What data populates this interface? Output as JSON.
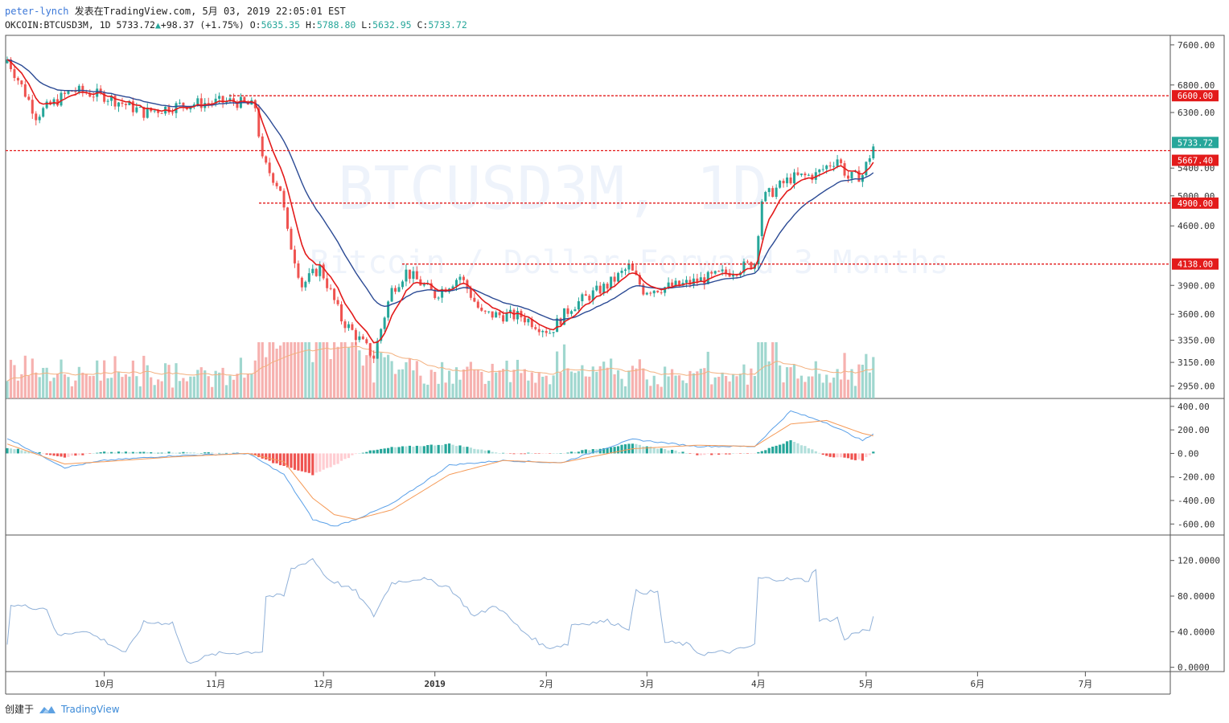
{
  "header": {
    "user": "peter-lynch",
    "published": "发表在TradingView.com, 5月 03, 2019 22:05:01 EST",
    "symbol": "OKCOIN:BTCUSD3M, 1D",
    "last": "5733.72",
    "change": "+98.37 (+1.75%)",
    "o_label": "O:",
    "o": "5635.35",
    "h_label": "H:",
    "h": "5788.80",
    "l_label": "L:",
    "l": "5632.95",
    "c_label": "C:",
    "c": "5733.72"
  },
  "footer": {
    "created": "创建于",
    "brand": "TradingView"
  },
  "watermark": {
    "symbol": "BTCUSD3M, 1D",
    "description": "Bitcoin / Dollar Forward 3 Months"
  },
  "colors": {
    "up": "#26a69a",
    "down": "#ef5350",
    "ema_fast": "#e31b1b",
    "ema_slow": "#2b4a94",
    "level": "#e31b1b",
    "macd": "#5aa0e8",
    "signal": "#f59a57",
    "osc": "#8fb0d8"
  },
  "chart_data": {
    "type": "candlestick",
    "x_axis_labels": [
      "10月",
      "11月",
      "12月",
      "2019",
      "2月",
      "3月",
      "4月",
      "5月",
      "6月",
      "7月"
    ],
    "price_axis": {
      "ticks": [
        "7600.00",
        "6800.00",
        "6300.00",
        "5400.00",
        "5000.00",
        "4600.00",
        "3900.00",
        "3600.00",
        "3350.00",
        "3150.00",
        "2950.00"
      ],
      "scale": "log",
      "range": [
        2850,
        7700
      ]
    },
    "price_tags": [
      {
        "value": "6600.00",
        "kind": "level"
      },
      {
        "value": "5733.72",
        "kind": "last"
      },
      {
        "value": "5667.40",
        "kind": "level"
      },
      {
        "value": "4900.00",
        "kind": "level"
      },
      {
        "value": "4138.00",
        "kind": "level"
      }
    ],
    "horizontal_levels": [
      6600,
      5667.4,
      4900,
      4138
    ],
    "price_path_anchors": [
      {
        "date": "2018-09-04",
        "close": 7300
      },
      {
        "date": "2018-09-12",
        "close": 6250
      },
      {
        "date": "2018-09-22",
        "close": 6700
      },
      {
        "date": "2018-10-01",
        "close": 6600
      },
      {
        "date": "2018-10-12",
        "close": 6300
      },
      {
        "date": "2018-10-24",
        "close": 6450
      },
      {
        "date": "2018-11-06",
        "close": 6500
      },
      {
        "date": "2018-11-12",
        "close": 6400
      },
      {
        "date": "2018-11-14",
        "close": 5500
      },
      {
        "date": "2018-11-19",
        "close": 5100
      },
      {
        "date": "2018-11-21",
        "close": 4500
      },
      {
        "date": "2018-11-25",
        "close": 3900
      },
      {
        "date": "2018-11-30",
        "close": 4100
      },
      {
        "date": "2018-12-06",
        "close": 3550
      },
      {
        "date": "2018-12-15",
        "close": 3200
      },
      {
        "date": "2018-12-20",
        "close": 3850
      },
      {
        "date": "2018-12-24",
        "close": 4050
      },
      {
        "date": "2019-01-01",
        "close": 3800
      },
      {
        "date": "2019-01-08",
        "close": 4000
      },
      {
        "date": "2019-01-14",
        "close": 3600
      },
      {
        "date": "2019-01-25",
        "close": 3580
      },
      {
        "date": "2019-02-02",
        "close": 3430
      },
      {
        "date": "2019-02-08",
        "close": 3680
      },
      {
        "date": "2019-02-18",
        "close": 3900
      },
      {
        "date": "2019-02-24",
        "close": 4100
      },
      {
        "date": "2019-02-28",
        "close": 3850
      },
      {
        "date": "2019-03-10",
        "close": 3900
      },
      {
        "date": "2019-03-20",
        "close": 4000
      },
      {
        "date": "2019-03-31",
        "close": 4150
      },
      {
        "date": "2019-04-02",
        "close": 4950
      },
      {
        "date": "2019-04-10",
        "close": 5250
      },
      {
        "date": "2019-04-17",
        "close": 5300
      },
      {
        "date": "2019-04-23",
        "close": 5550
      },
      {
        "date": "2019-04-26",
        "close": 5250
      },
      {
        "date": "2019-04-30",
        "close": 5300
      },
      {
        "date": "2019-05-03",
        "close": 5733.72
      }
    ],
    "macd_axis": {
      "ticks": [
        "400.00",
        "200.00",
        "0.00",
        "-200.00",
        "-400.00",
        "-600.00"
      ],
      "range": [
        -680,
        440
      ]
    },
    "macd_anchors": [
      {
        "date": "2018-09-04",
        "macd": 130,
        "signal": 80
      },
      {
        "date": "2018-09-20",
        "macd": -120,
        "signal": -90
      },
      {
        "date": "2018-10-01",
        "macd": -60,
        "signal": -70
      },
      {
        "date": "2018-10-20",
        "macd": -20,
        "signal": -30
      },
      {
        "date": "2018-11-10",
        "macd": 0,
        "signal": 0
      },
      {
        "date": "2018-11-20",
        "macd": -180,
        "signal": -70
      },
      {
        "date": "2018-11-28",
        "macd": -560,
        "signal": -380
      },
      {
        "date": "2018-12-04",
        "macd": -620,
        "signal": -520
      },
      {
        "date": "2018-12-10",
        "macd": -560,
        "signal": -560
      },
      {
        "date": "2018-12-20",
        "macd": -430,
        "signal": -480
      },
      {
        "date": "2019-01-05",
        "macd": -100,
        "signal": -180
      },
      {
        "date": "2019-01-20",
        "macd": -60,
        "signal": -60
      },
      {
        "date": "2019-02-05",
        "macd": -80,
        "signal": -80
      },
      {
        "date": "2019-02-25",
        "macd": 120,
        "signal": 40
      },
      {
        "date": "2019-03-15",
        "macd": 60,
        "signal": 70
      },
      {
        "date": "2019-03-31",
        "macd": 60,
        "signal": 60
      },
      {
        "date": "2019-04-10",
        "macd": 360,
        "signal": 250
      },
      {
        "date": "2019-04-20",
        "macd": 260,
        "signal": 280
      },
      {
        "date": "2019-04-30",
        "macd": 110,
        "signal": 170
      },
      {
        "date": "2019-05-03",
        "macd": 160,
        "signal": 150
      }
    ],
    "osc_axis": {
      "ticks": [
        "120.0000",
        "80.0000",
        "40.0000",
        "0.0000"
      ],
      "range": [
        -3,
        145
      ]
    },
    "osc_anchors": [
      {
        "date": "2018-09-04",
        "value": 28
      },
      {
        "date": "2018-09-05",
        "value": 70
      },
      {
        "date": "2018-09-15",
        "value": 66
      },
      {
        "date": "2018-09-18",
        "value": 35
      },
      {
        "date": "2018-09-25",
        "value": 42
      },
      {
        "date": "2018-10-01",
        "value": 30
      },
      {
        "date": "2018-10-07",
        "value": 16
      },
      {
        "date": "2018-10-12",
        "value": 50
      },
      {
        "date": "2018-10-20",
        "value": 50
      },
      {
        "date": "2018-10-24",
        "value": 5
      },
      {
        "date": "2018-11-01",
        "value": 15
      },
      {
        "date": "2018-11-14",
        "value": 18
      },
      {
        "date": "2018-11-15",
        "value": 80
      },
      {
        "date": "2018-11-20",
        "value": 80
      },
      {
        "date": "2018-11-22",
        "value": 110
      },
      {
        "date": "2018-11-28",
        "value": 122
      },
      {
        "date": "2018-12-02",
        "value": 100
      },
      {
        "date": "2018-12-10",
        "value": 85
      },
      {
        "date": "2018-12-15",
        "value": 58
      },
      {
        "date": "2018-12-20",
        "value": 95
      },
      {
        "date": "2018-12-28",
        "value": 100
      },
      {
        "date": "2019-01-05",
        "value": 90
      },
      {
        "date": "2019-01-12",
        "value": 57
      },
      {
        "date": "2019-01-18",
        "value": 70
      },
      {
        "date": "2019-01-25",
        "value": 42
      },
      {
        "date": "2019-02-01",
        "value": 22
      },
      {
        "date": "2019-02-07",
        "value": 26
      },
      {
        "date": "2019-02-08",
        "value": 48
      },
      {
        "date": "2019-02-18",
        "value": 52
      },
      {
        "date": "2019-02-24",
        "value": 44
      },
      {
        "date": "2019-02-26",
        "value": 85
      },
      {
        "date": "2019-03-04",
        "value": 84
      },
      {
        "date": "2019-03-06",
        "value": 28
      },
      {
        "date": "2019-03-12",
        "value": 26
      },
      {
        "date": "2019-03-16",
        "value": 15
      },
      {
        "date": "2019-03-25",
        "value": 18
      },
      {
        "date": "2019-03-31",
        "value": 25
      },
      {
        "date": "2019-04-01",
        "value": 100
      },
      {
        "date": "2019-04-15",
        "value": 98
      },
      {
        "date": "2019-04-17",
        "value": 112
      },
      {
        "date": "2019-04-18",
        "value": 52
      },
      {
        "date": "2019-04-23",
        "value": 55
      },
      {
        "date": "2019-04-25",
        "value": 30
      },
      {
        "date": "2019-04-28",
        "value": 40
      },
      {
        "date": "2019-05-02",
        "value": 42
      },
      {
        "date": "2019-05-03",
        "value": 56
      }
    ]
  }
}
